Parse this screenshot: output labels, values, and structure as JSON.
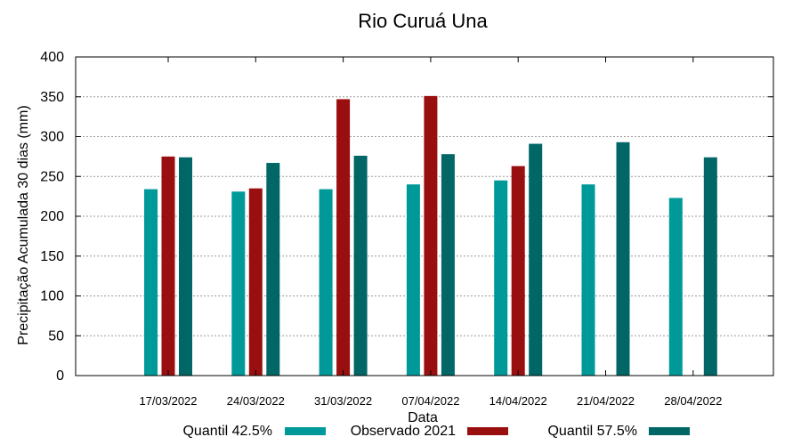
{
  "chart_data": {
    "type": "bar",
    "title": "Rio Curuá Una",
    "xlabel": "Data",
    "ylabel": "Precipitação Acumulada 30 dias (mm)",
    "ylim": [
      0,
      400
    ],
    "yticks": [
      "0",
      "50",
      "100",
      "150",
      "200",
      "250",
      "300",
      "350",
      "400"
    ],
    "grid": true,
    "legend_position": "bottom",
    "categories": [
      "17/03/2022",
      "24/03/2022",
      "31/03/2022",
      "07/04/2022",
      "14/04/2022",
      "21/04/2022",
      "28/04/2022"
    ],
    "series": [
      {
        "name": "Quantil 42.5%",
        "color": "#009999",
        "values": [
          234,
          231,
          234,
          240,
          245,
          240,
          223
        ]
      },
      {
        "name": "Observado 2021",
        "color": "#990f0f",
        "values": [
          275,
          235,
          347,
          351,
          263,
          null,
          null
        ]
      },
      {
        "name": "Quantil 57.5%",
        "color": "#006666",
        "values": [
          274,
          267,
          276,
          278,
          291,
          293,
          274
        ]
      }
    ]
  }
}
